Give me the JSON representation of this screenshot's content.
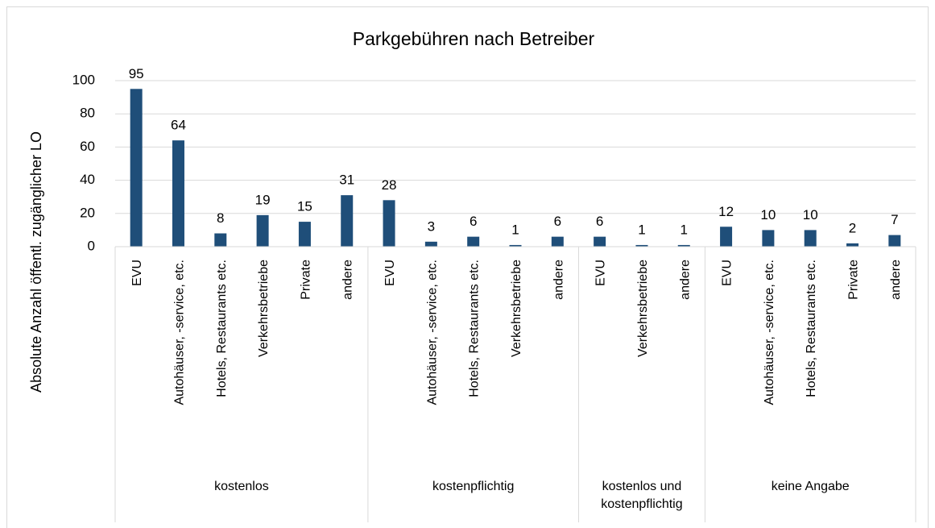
{
  "chart_data": {
    "type": "bar",
    "title": "Parkgebühren nach Betreiber",
    "y_label": "Absolute Anzahl öffentl. zugänglicher LO",
    "groups": [
      {
        "name": "kostenlos",
        "categories": [
          "EVU",
          "Autohäuser, -service, etc.",
          "Hotels, Restaurants etc.",
          "Verkehrsbetriebe",
          "Private",
          "andere"
        ]
      },
      {
        "name": "kostenpflichtig",
        "categories": [
          "EVU",
          "Autohäuser, -service, etc.",
          "Hotels, Restaurants etc.",
          "Verkehrsbetriebe",
          "andere"
        ]
      },
      {
        "name": "kostenlos und kostenpflichtig",
        "categories": [
          "EVU",
          "Verkehrsbetriebe",
          "andere"
        ]
      },
      {
        "name": "keine Angabe",
        "categories": [
          "EVU",
          "Autohäuser, -service, etc.",
          "Hotels, Restaurants etc.",
          "Private",
          "andere"
        ]
      }
    ],
    "values": [
      95,
      64,
      8,
      19,
      15,
      31,
      28,
      3,
      6,
      1,
      6,
      6,
      1,
      1,
      12,
      10,
      10,
      2,
      7
    ],
    "color": "#1f4e79",
    "ylim": [
      0,
      100
    ],
    "yticks": [
      0,
      20,
      40,
      60,
      80,
      100
    ],
    "grid": true
  }
}
